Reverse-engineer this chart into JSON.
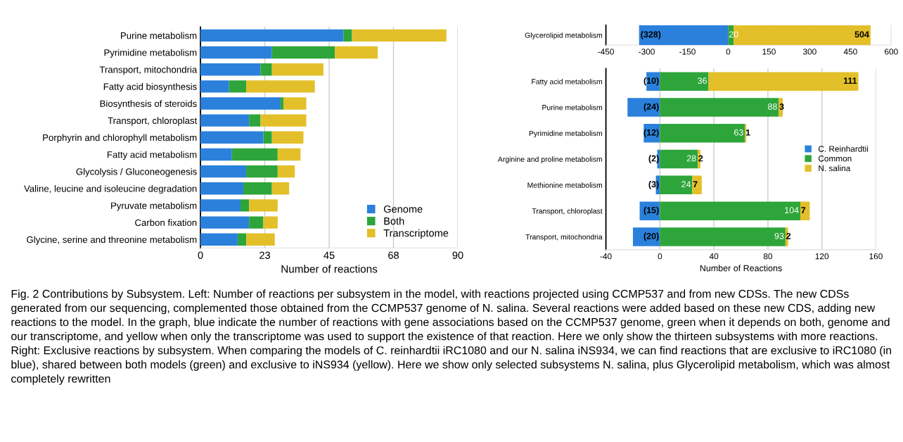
{
  "chart_data": [
    {
      "type": "bar",
      "orientation": "horizontal",
      "stacked": true,
      "xlabel": "Number of reactions",
      "categories": [
        "Purine metabolism",
        "Pyrimidine metabolism",
        "Transport, mitochondria",
        "Fatty acid biosynthesis",
        "Biosynthesis of steroids",
        "Transport, chloroplast",
        "Porphyrin and chlorophyll metabolism",
        "Fatty acid metabolism",
        "Glycolysis / Gluconeogenesis",
        "Valine, leucine and isoleucine degradation",
        "Pyruvate metabolism",
        "Carbon fixation",
        "Glycine, serine and threonine metabolism"
      ],
      "series": [
        {
          "name": "Genome",
          "color": "#2b80dc",
          "values": [
            50,
            25,
            21,
            10,
            28,
            17,
            22,
            11,
            16,
            15,
            14,
            17,
            13
          ]
        },
        {
          "name": "Both",
          "color": "#2ea53a",
          "values": [
            3,
            22,
            4,
            6,
            1,
            4,
            3,
            16,
            11,
            10,
            3,
            5,
            3
          ]
        },
        {
          "name": "Transcriptome",
          "color": "#e3c02a",
          "values": [
            33,
            15,
            18,
            24,
            8,
            16,
            11,
            8,
            6,
            6,
            10,
            5,
            10
          ]
        }
      ],
      "xlim": [
        0,
        90
      ],
      "xticks": [
        0,
        {
          "value": 22.5,
          "label": "23"
        },
        45,
        {
          "value": 67.5,
          "label": "68"
        },
        90
      ],
      "grid": "x",
      "legend": "bottom right",
      "annotations": [
        "Fig. 2 Contributions by Subsystem. Left: Number of reactions per subsystem in the model, with reactions projected using CCMP537 and from new CDSs. The new CDSs generated from our sequencing, complemented those obtained from the CCMP537 genome of N. salina. Several reactions were added based on these new CDS, adding new reactions to the model. In the graph, blue indicate the number of reactions with gene associations based on the CCMP537 genome, green when it depends on both, genome and our transcriptome, and yellow when only the transcriptome was used to support the existence of that reaction. Here we only show the thirteen subsystems with more reactions. Right: Exclusive reactions by subsystem. When comparing the models of C. reinhardtii iRC1080 and our N. salina iNS934, we can find reactions that are exclusive to iRC1080 (in blue), shared between both models (green) and exclusive to iNS934 (yellow). Here we show only selected subsystems N. salina, plus Glycerolipid metabolism, which was almost completely rewritten"
      ]
    },
    {
      "type": "bar",
      "orientation": "horizontal",
      "stacked": true,
      "categories": [
        "Glycerolipid metabolism"
      ],
      "series": [
        {
          "color": "#2b80dc",
          "values": [
            -328
          ],
          "value_labels": [
            "(328)"
          ]
        },
        {
          "color": "#2ea53a",
          "values": [
            20
          ],
          "value_labels": [
            "20"
          ]
        },
        {
          "color": "#e3c02a",
          "values": [
            504
          ],
          "value_labels": [
            "504"
          ]
        }
      ],
      "xlim": [
        -450,
        600
      ],
      "xticks": [
        -450,
        -300,
        -150,
        0,
        150,
        300,
        450,
        600
      ],
      "grid": "x"
    },
    {
      "type": "bar",
      "orientation": "horizontal",
      "stacked": true,
      "xlabel": "Number of Reactions",
      "categories": [
        "Fatty acid metabolism",
        "Purine metabolism",
        "Pyrimidine metabolism",
        "Arginine and proline metabolism",
        "Methionine metabolism",
        "Transport, chloroplast",
        "Transport, mitochondria"
      ],
      "series": [
        {
          "name": "C. Reinhardtii",
          "color": "#2b80dc",
          "values": [
            -10,
            -24,
            -12,
            -2,
            -3,
            -15,
            -20
          ],
          "value_labels": [
            "(10)",
            "(24)",
            "(12)",
            "(2)",
            "(3)",
            "(15)",
            "(20)"
          ]
        },
        {
          "name": "Common",
          "color": "#2ea53a",
          "values": [
            36,
            88,
            63,
            28,
            24,
            104,
            93
          ],
          "value_labels": [
            "36",
            "88",
            "63",
            "28",
            "24",
            "104",
            "93"
          ]
        },
        {
          "name": "N. salina",
          "color": "#e3c02a",
          "values": [
            111,
            3,
            1,
            2,
            7,
            7,
            2
          ],
          "value_labels": [
            "111",
            "3",
            "1",
            "2",
            "7",
            "7",
            "2"
          ]
        }
      ],
      "xlim": [
        -40,
        160
      ],
      "xticks": [
        -40,
        0,
        40,
        80,
        120,
        160
      ],
      "grid": "x",
      "legend": "right"
    }
  ]
}
